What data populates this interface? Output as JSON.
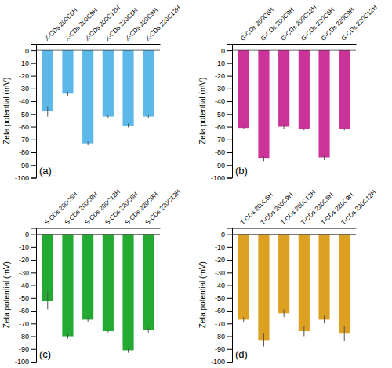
{
  "chart_data": [
    {
      "type": "bar",
      "title": "(a)",
      "color": "#5BB8E8",
      "categories": [
        "X-CDs 200C6H",
        "X-CDs 200C9H",
        "X-CDs 200C12H",
        "X-CDs 220C6H",
        "X-CDs 220C9H",
        "X-CDs 220C12H"
      ],
      "values": [
        -48,
        -34,
        -73,
        -52,
        -59,
        -52
      ],
      "errors": [
        4,
        1.5,
        1.5,
        1,
        1.5,
        1.5
      ],
      "ylabel": "Zeta potential (mV)",
      "ylim": [
        -100,
        5
      ],
      "yticks": [
        0,
        -10,
        -20,
        -30,
        -40,
        -50,
        -60,
        -70,
        -80,
        -90,
        -100
      ]
    },
    {
      "type": "bar",
      "title": "(b)",
      "color": "#CC3399",
      "categories": [
        "G-CDs 200C6H",
        "G-CDs 200C9H",
        "G-CDs 200C12H",
        "G-CDs 220C6H",
        "G-CDs 220C9H",
        "G-CDs 220C12H"
      ],
      "values": [
        -61,
        -85,
        -60,
        -62,
        -84,
        -62
      ],
      "errors": [
        1,
        2,
        2,
        1,
        2,
        1
      ],
      "ylabel": "Zeta potential (mV)",
      "ylim": [
        -100,
        5
      ],
      "yticks": [
        0,
        -10,
        -20,
        -30,
        -40,
        -50,
        -60,
        -70,
        -80,
        -90,
        -100
      ]
    },
    {
      "type": "bar",
      "title": "(c)",
      "color": "#22AA33",
      "categories": [
        "S-CDs 200C6H",
        "S-CDs 200C9H",
        "S-CDs 200C12H",
        "S-CDs 220C6H",
        "S-CDs 220C9H",
        "S-CDs 220C12H"
      ],
      "values": [
        -52,
        -80,
        -67,
        -76,
        -91,
        -75
      ],
      "errors": [
        7,
        2,
        2,
        1,
        2,
        2
      ],
      "ylabel": "Zeta potential (mV)",
      "ylim": [
        -100,
        5
      ],
      "yticks": [
        0,
        -10,
        -20,
        -30,
        -40,
        -50,
        -60,
        -70,
        -80,
        -90,
        -100
      ]
    },
    {
      "type": "bar",
      "title": "(d)",
      "color": "#DDA020",
      "categories": [
        "T-CDs 200C6H",
        "T-CDs 200C9H",
        "T-CDs 200C12H",
        "T-CDs 220C6H",
        "T-CDs 220C9H",
        "T-CDs 220C12H"
      ],
      "values": [
        -67,
        -83,
        -62,
        -76,
        -67,
        -78
      ],
      "errors": [
        2,
        5,
        3,
        4,
        3,
        6
      ],
      "ylabel": "Zeta potential (mV)",
      "ylim": [
        -100,
        5
      ],
      "yticks": [
        0,
        -10,
        -20,
        -30,
        -40,
        -50,
        -60,
        -70,
        -80,
        -90,
        -100
      ]
    }
  ]
}
